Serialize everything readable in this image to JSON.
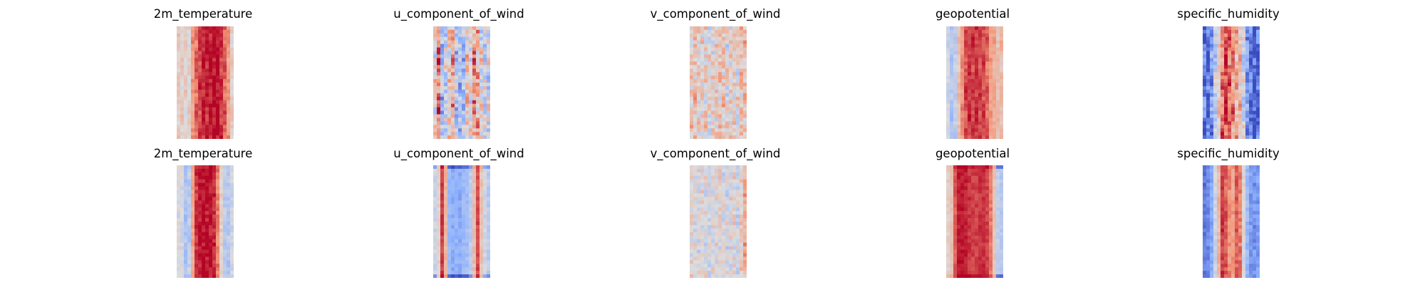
{
  "figure": {
    "colormap": "coolwarm",
    "colors": {
      "cold": "#3b4cc0",
      "neutral": "#dddddd",
      "warm": "#b40426"
    }
  },
  "chart_data": [
    {
      "type": "heatmap",
      "title": "2m_temperature",
      "row": 1,
      "column": 1,
      "profile": [
        0.55,
        0.58,
        0.52,
        0.55,
        0.7,
        0.85,
        0.92,
        0.97,
        0.97,
        0.97,
        0.97,
        0.97,
        0.95,
        0.85,
        0.7,
        0.55
      ],
      "profile_noise": 0.08,
      "cell_noise": 0.05,
      "edge_cooling": 0.0,
      "wave": 0.05
    },
    {
      "type": "heatmap",
      "title": "u_component_of_wind",
      "row": 1,
      "column": 2,
      "profile": [
        0.5,
        0.78,
        0.25,
        0.45,
        0.55,
        0.7,
        0.35,
        0.4,
        0.3,
        0.6,
        0.45,
        0.7,
        0.62,
        0.5,
        0.38,
        0.45
      ],
      "profile_noise": 0.1,
      "cell_noise": 0.18,
      "edge_cooling": 0.0,
      "wave": 0.08
    },
    {
      "type": "heatmap",
      "title": "v_component_of_wind",
      "row": 1,
      "column": 3,
      "profile": [
        0.58,
        0.62,
        0.52,
        0.55,
        0.58,
        0.5,
        0.52,
        0.55,
        0.58,
        0.6,
        0.5,
        0.55,
        0.56,
        0.52,
        0.6,
        0.62
      ],
      "profile_noise": 0.0,
      "cell_noise": 0.14,
      "edge_cooling": 0.0,
      "wave": 0.06
    },
    {
      "type": "heatmap",
      "title": "geopotential",
      "row": 1,
      "column": 4,
      "profile": [
        0.45,
        0.38,
        0.42,
        0.6,
        0.78,
        0.88,
        0.92,
        0.92,
        0.92,
        0.9,
        0.86,
        0.82,
        0.72,
        0.68,
        0.65,
        0.62
      ],
      "profile_noise": 0.05,
      "cell_noise": 0.05,
      "edge_cooling": 0.0,
      "wave": 0.04
    },
    {
      "type": "heatmap",
      "title": "specific_humidity",
      "row": 1,
      "column": 5,
      "profile": [
        0.05,
        0.1,
        0.2,
        0.35,
        0.55,
        0.75,
        0.88,
        0.85,
        0.8,
        0.7,
        0.55,
        0.4,
        0.25,
        0.12,
        0.06,
        0.05
      ],
      "profile_noise": 0.12,
      "cell_noise": 0.12,
      "edge_cooling": 0.0,
      "wave": 0.1
    },
    {
      "type": "heatmap",
      "title": "2m_temperature",
      "row": 2,
      "column": 1,
      "profile": [
        0.5,
        0.48,
        0.35,
        0.4,
        0.7,
        0.92,
        0.97,
        0.98,
        0.98,
        0.97,
        0.93,
        0.78,
        0.55,
        0.4,
        0.38,
        0.45
      ],
      "profile_noise": 0.0,
      "cell_noise": 0.06,
      "edge_cooling": 0.0,
      "wave": 0.02
    },
    {
      "type": "heatmap",
      "title": "u_component_of_wind",
      "row": 2,
      "column": 2,
      "profile": [
        0.45,
        0.55,
        0.9,
        0.65,
        0.3,
        0.25,
        0.28,
        0.25,
        0.3,
        0.32,
        0.4,
        0.62,
        0.88,
        0.6,
        0.45,
        0.4
      ],
      "profile_noise": 0.0,
      "cell_noise": 0.05,
      "edge_cooling": 0.25,
      "wave": 0.0
    },
    {
      "type": "heatmap",
      "title": "v_component_of_wind",
      "row": 2,
      "column": 3,
      "profile": [
        0.52,
        0.5,
        0.48,
        0.52,
        0.5,
        0.48,
        0.5,
        0.5,
        0.52,
        0.5,
        0.48,
        0.5,
        0.52,
        0.45,
        0.55,
        0.68
      ],
      "profile_noise": 0.0,
      "cell_noise": 0.1,
      "edge_cooling": 0.0,
      "wave": 0.04
    },
    {
      "type": "heatmap",
      "title": "geopotential",
      "row": 2,
      "column": 4,
      "profile": [
        0.55,
        0.6,
        0.85,
        0.96,
        0.97,
        0.95,
        0.92,
        0.9,
        0.9,
        0.92,
        0.93,
        0.9,
        0.8,
        0.6,
        0.42,
        0.38
      ],
      "profile_noise": 0.0,
      "cell_noise": 0.04,
      "edge_cooling": 0.3,
      "wave": 0.0
    },
    {
      "type": "heatmap",
      "title": "specific_humidity",
      "row": 2,
      "column": 5,
      "profile": [
        0.12,
        0.15,
        0.25,
        0.45,
        0.65,
        0.9,
        0.85,
        0.75,
        0.72,
        0.85,
        0.8,
        0.5,
        0.3,
        0.2,
        0.18,
        0.2
      ],
      "profile_noise": 0.0,
      "cell_noise": 0.06,
      "edge_cooling": 0.0,
      "wave": 0.02
    }
  ]
}
